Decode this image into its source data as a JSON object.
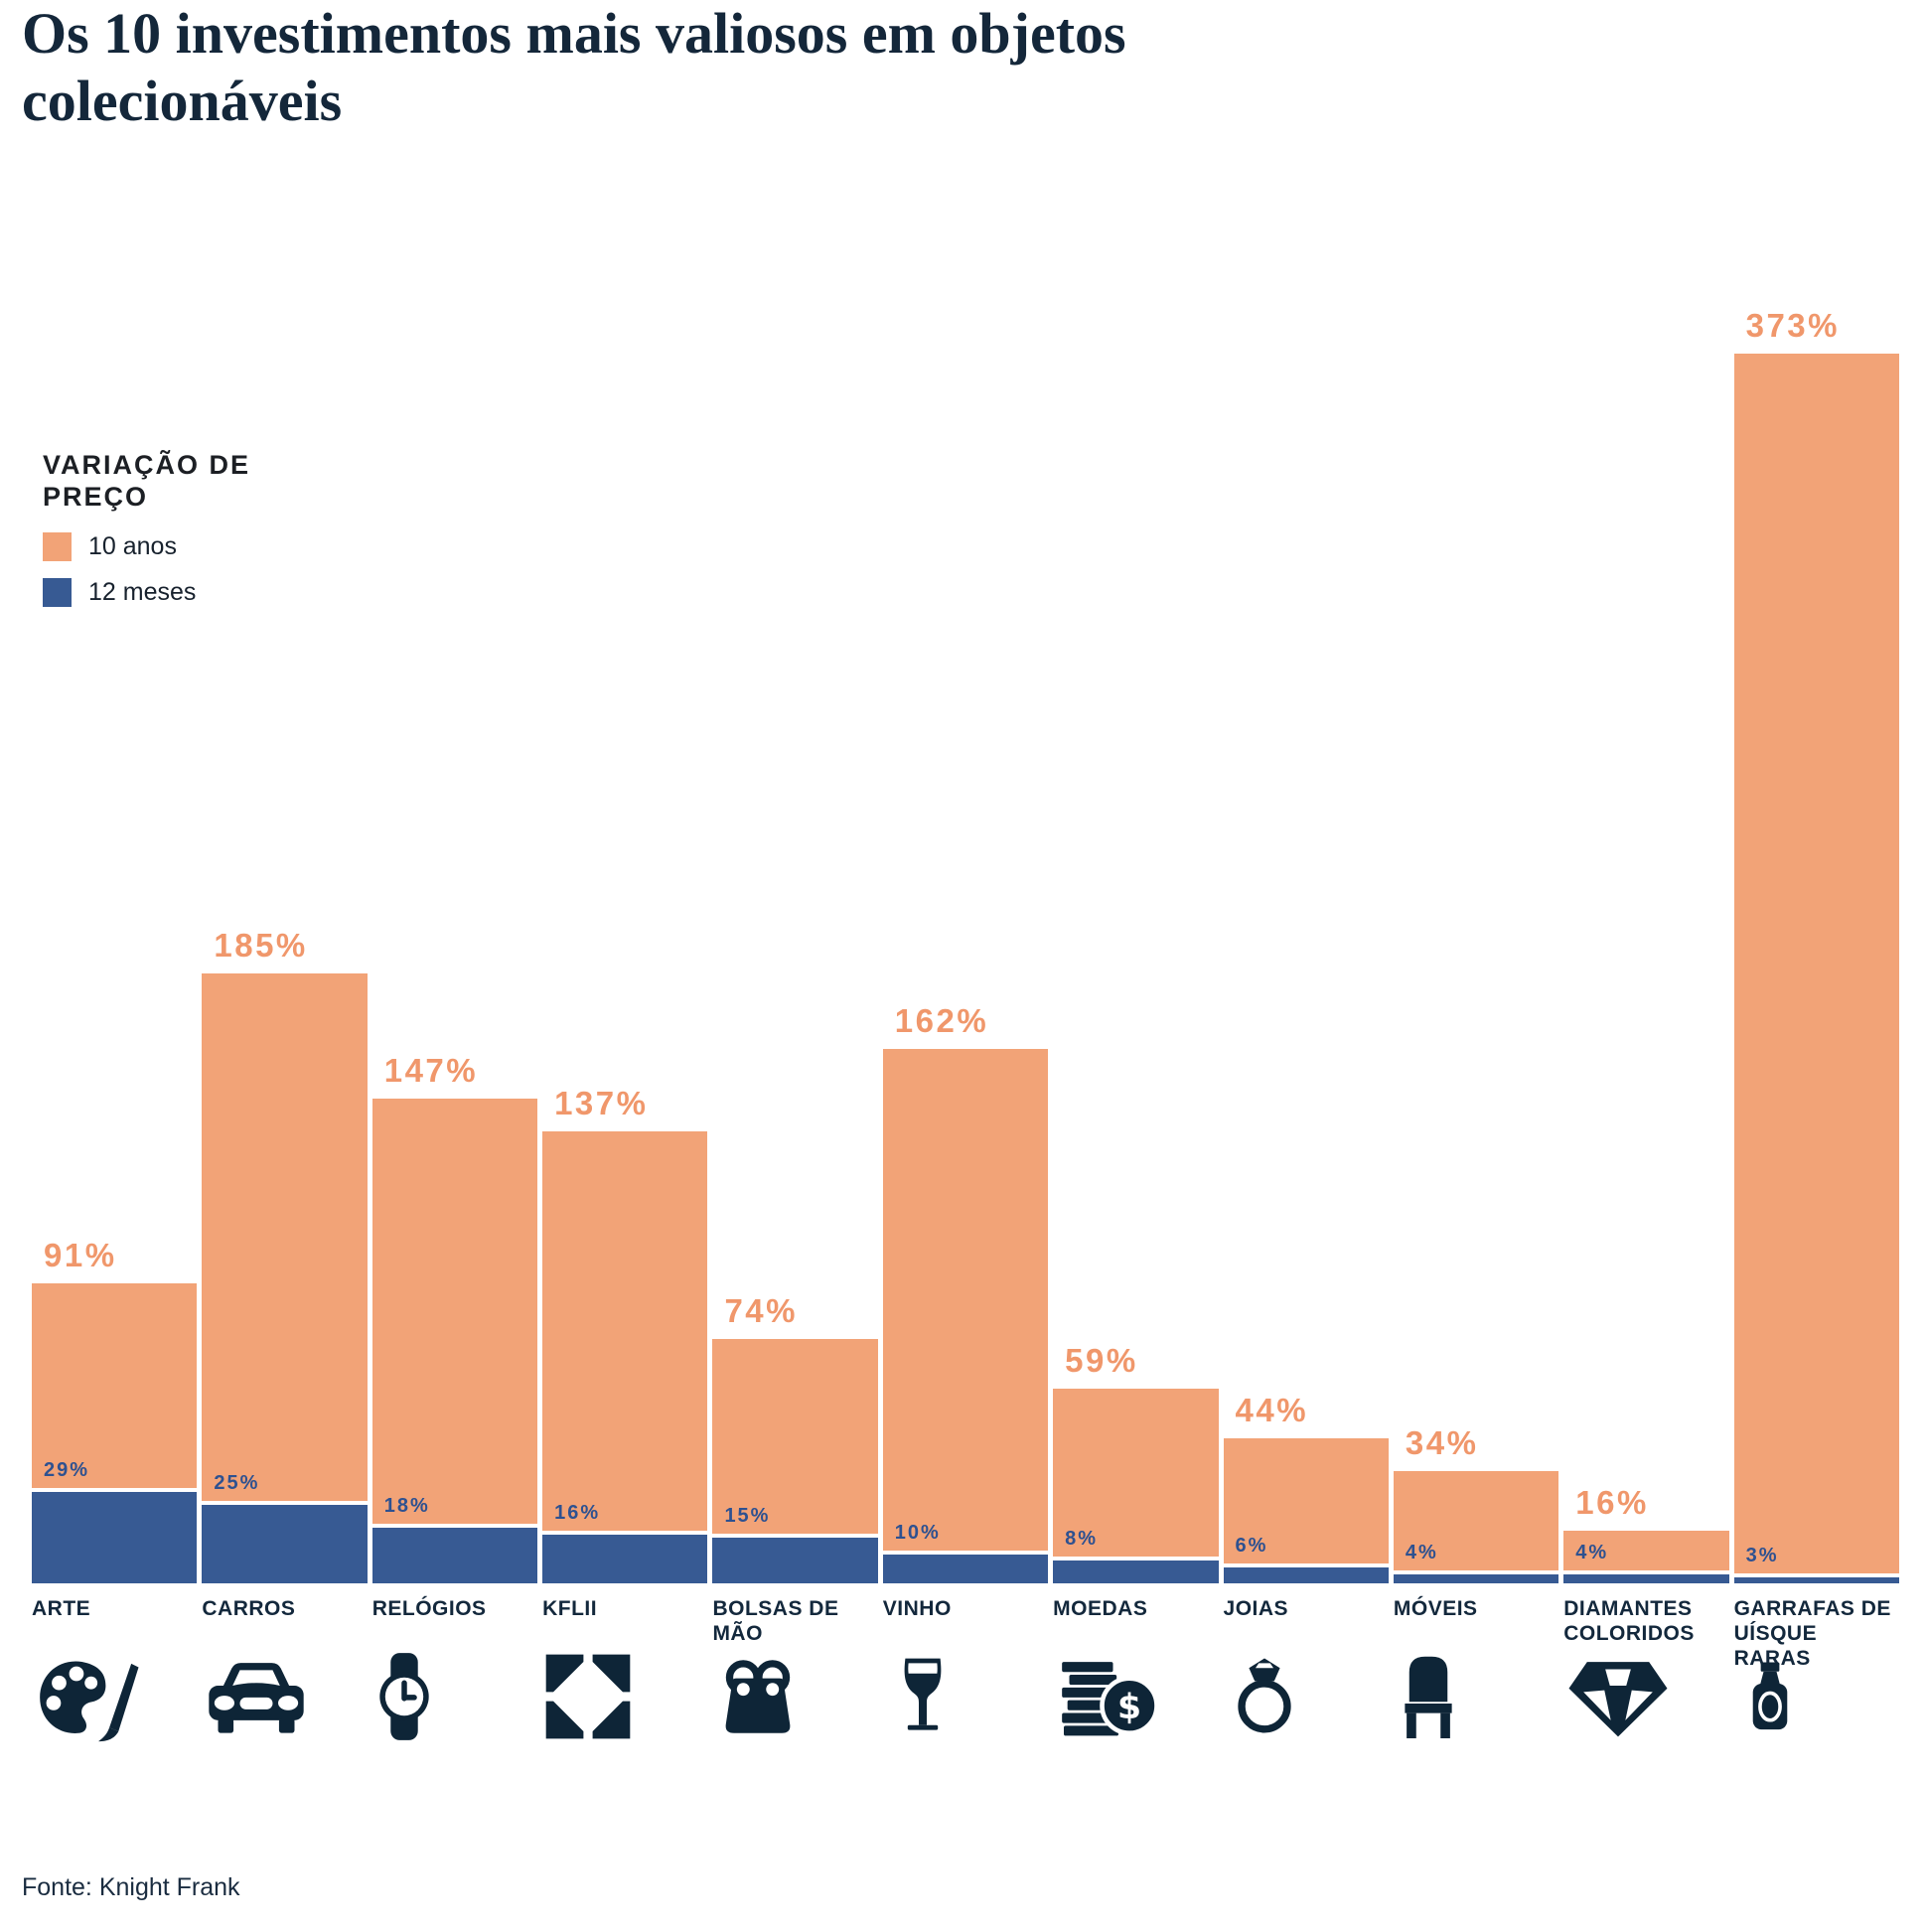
{
  "title": "Os 10 investimentos mais valiosos em objetos\ncolecionáveis",
  "source": "Fonte: Knight Frank",
  "legend": {
    "title": "VARIAÇÃO DE\nPREÇO",
    "items": [
      {
        "label": "10 anos",
        "color": "#F2A377"
      },
      {
        "label": "12 meses",
        "color": "#375A93"
      }
    ]
  },
  "colors": {
    "orange_bar": "#F2A377",
    "orange_label": "#F0976B",
    "blue_bar": "#375A93",
    "blue_label": "#2E5190",
    "navy_text": "#13283C",
    "icon_navy": "#0E2537"
  },
  "chart_data": {
    "type": "bar",
    "title": "Os 10 investimentos mais valiosos em objetos colecionáveis",
    "categories": [
      "Arte",
      "Carros",
      "Relógios",
      "KFLII",
      "Bolsas de mão",
      "Vinho",
      "Moedas",
      "Joias",
      "Móveis",
      "Diamantes coloridos",
      "Garrafas de uísque raras"
    ],
    "series": [
      {
        "name": "10 anos",
        "values": [
          91,
          185,
          147,
          137,
          74,
          162,
          59,
          44,
          34,
          16,
          373
        ]
      },
      {
        "name": "12 meses",
        "values": [
          29,
          25,
          18,
          16,
          15,
          10,
          8,
          6,
          4,
          4,
          3
        ]
      }
    ],
    "unit": "%",
    "ylim": [
      0,
      400
    ],
    "grid": false,
    "axes_shown": false,
    "value_labels": "shown above each bar",
    "legend_title": "Variação de preço",
    "legend_position": "upper-left",
    "source": "Knight Frank"
  },
  "items": [
    {
      "label": "ARTE",
      "pct10": "91%",
      "pct12": "29%",
      "v10": 91,
      "v12": 29,
      "icon": "palette"
    },
    {
      "label": "CARROS",
      "pct10": "185%",
      "pct12": "25%",
      "v10": 185,
      "v12": 25,
      "icon": "car"
    },
    {
      "label": "RELÓGIOS",
      "pct10": "147%",
      "pct12": "18%",
      "v10": 147,
      "v12": 18,
      "icon": "watch"
    },
    {
      "label": "KFLII",
      "pct10": "137%",
      "pct12": "16%",
      "v10": 137,
      "v12": 16,
      "icon": "kf-index"
    },
    {
      "label": "BOLSAS DE\nMÃO",
      "pct10": "74%",
      "pct12": "15%",
      "v10": 74,
      "v12": 15,
      "icon": "handbag"
    },
    {
      "label": "VINHO",
      "pct10": "162%",
      "pct12": "10%",
      "v10": 162,
      "v12": 10,
      "icon": "wine-glass"
    },
    {
      "label": "MOEDAS",
      "pct10": "59%",
      "pct12": "8%",
      "v10": 59,
      "v12": 8,
      "icon": "coins"
    },
    {
      "label": "JOIAS",
      "pct10": "44%",
      "pct12": "6%",
      "v10": 44,
      "v12": 6,
      "icon": "ring"
    },
    {
      "label": "MÓVEIS",
      "pct10": "34%",
      "pct12": "4%",
      "v10": 34,
      "v12": 4,
      "icon": "chair"
    },
    {
      "label": "DIAMANTES\nCOLORIDOS",
      "pct10": "16%",
      "pct12": "4%",
      "v10": 16,
      "v12": 4,
      "icon": "diamond"
    },
    {
      "label": "GARRAFAS DE\nUÍSQUE RARAS",
      "pct10": "373%",
      "pct12": "3%",
      "v10": 373,
      "v12": 3,
      "icon": "whisky-bottle"
    }
  ]
}
